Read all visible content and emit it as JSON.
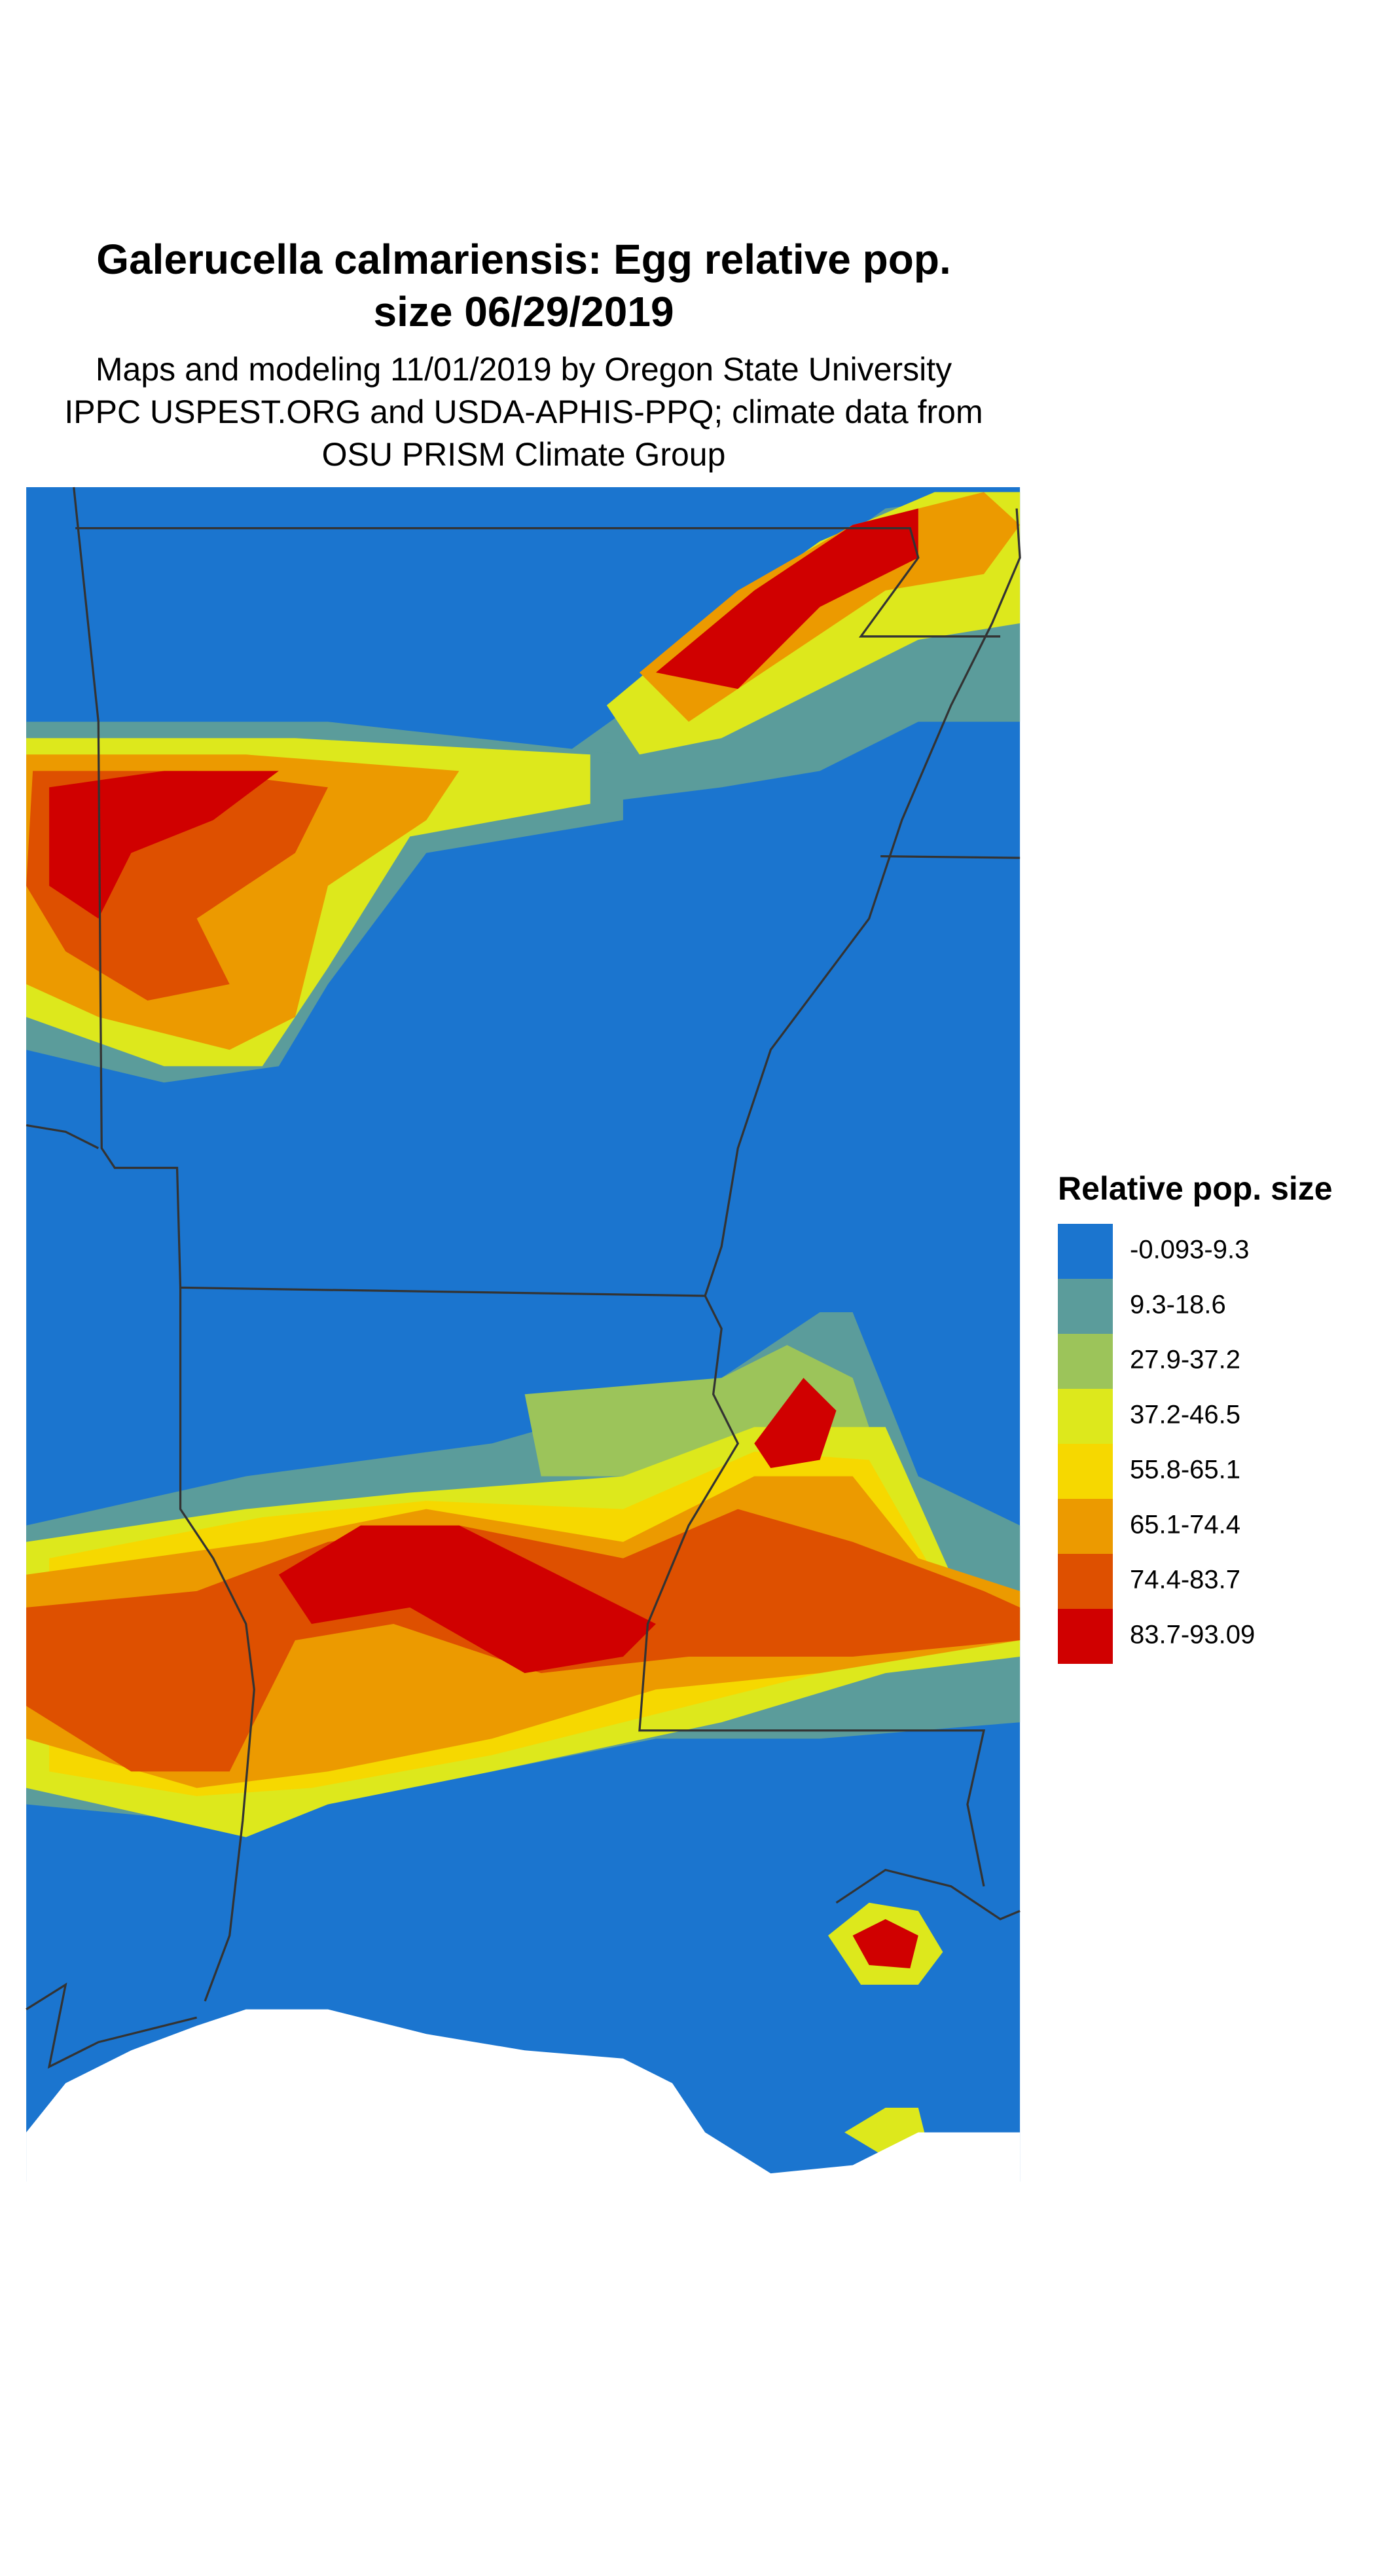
{
  "title_lines": [
    "Galerucella calmariensis: Egg relative pop.",
    "size 06/29/2019"
  ],
  "subtitle_lines": [
    "Maps and modeling 11/01/2019 by Oregon State University",
    "IPPC USPEST.ORG and USDA-APHIS-PPQ; climate data from",
    "OSU PRISM Climate Group"
  ],
  "legend": {
    "title": "Relative pop. size",
    "items": [
      {
        "label": "-0.093-9.3",
        "color": "#1b75cf"
      },
      {
        "label": "9.3-18.6",
        "color": "#5b9c9b"
      },
      {
        "label": "27.9-37.2",
        "color": "#9cc45a"
      },
      {
        "label": "37.2-46.5",
        "color": "#dde81c"
      },
      {
        "label": "55.8-65.1",
        "color": "#f6d800"
      },
      {
        "label": "65.1-74.4",
        "color": "#ec9a00"
      },
      {
        "label": "74.4-83.7",
        "color": "#de5000"
      },
      {
        "label": "83.7-93.09",
        "color": "#d00000"
      }
    ]
  }
}
